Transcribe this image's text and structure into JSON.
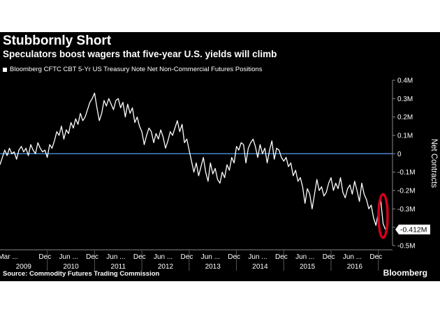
{
  "header": {
    "title": "Stubbornly Short",
    "subtitle": "Speculators boost wagers that five-year U.S. yields will climb"
  },
  "footer": {
    "source": "Source: Commodity Futures Trading Commission",
    "brand": "Bloomberg"
  },
  "colors": {
    "background": "#000000",
    "series_line": "#ffffff",
    "zero_line": "#4a90e2",
    "highlight": "#d0021b"
  },
  "chart_data": {
    "type": "line",
    "legend": "Bloomberg CFTC CBT 5-Yr US Treasury Note Net Non-Commercial Futures Positions",
    "ylabel": "Net Contracts",
    "ylim": [
      -0.5,
      0.4
    ],
    "xlim": [
      2009.0,
      2017.3
    ],
    "y_ticks": [
      {
        "value": 0.4,
        "label": "0.4M"
      },
      {
        "value": 0.3,
        "label": "0.3M"
      },
      {
        "value": 0.2,
        "label": "0.2M"
      },
      {
        "value": 0.1,
        "label": "0.1M"
      },
      {
        "value": 0,
        "label": "0"
      },
      {
        "value": -0.1,
        "label": "-0.1M"
      },
      {
        "value": -0.2,
        "label": "-0.2M"
      },
      {
        "value": -0.3,
        "label": "-0.3M"
      },
      {
        "value": -0.4,
        "label": "-0.4M"
      },
      {
        "value": -0.5,
        "label": "-0.5M"
      }
    ],
    "x_month_labels": [
      {
        "x": 2009.17,
        "label": "Mar ..."
      },
      {
        "x": 2009.95,
        "label": "Dec"
      },
      {
        "x": 2010.45,
        "label": "Jun ..."
      },
      {
        "x": 2010.95,
        "label": "Dec"
      },
      {
        "x": 2011.45,
        "label": "Jun ..."
      },
      {
        "x": 2011.95,
        "label": "Dec"
      },
      {
        "x": 2012.45,
        "label": "Jun ..."
      },
      {
        "x": 2012.95,
        "label": "Dec"
      },
      {
        "x": 2013.45,
        "label": "Jun ..."
      },
      {
        "x": 2013.95,
        "label": "Dec"
      },
      {
        "x": 2014.45,
        "label": "Jun ..."
      },
      {
        "x": 2014.95,
        "label": "Dec"
      },
      {
        "x": 2015.45,
        "label": "Jun ..."
      },
      {
        "x": 2015.95,
        "label": "Dec"
      },
      {
        "x": 2016.45,
        "label": "Jun ..."
      },
      {
        "x": 2016.95,
        "label": "Dec"
      }
    ],
    "x_year_labels": [
      {
        "x": 2009.5,
        "label": "2009"
      },
      {
        "x": 2010.5,
        "label": "2010"
      },
      {
        "x": 2011.5,
        "label": "2011"
      },
      {
        "x": 2012.5,
        "label": "2012"
      },
      {
        "x": 2013.5,
        "label": "2013"
      },
      {
        "x": 2014.5,
        "label": "2014"
      },
      {
        "x": 2015.5,
        "label": "2015"
      },
      {
        "x": 2016.5,
        "label": "2016"
      }
    ],
    "reference_line": 0,
    "last_value": {
      "value": -0.412,
      "label": "-0.412M"
    },
    "annotation": "red ellipse highlighting latest reading",
    "series": [
      {
        "x": [
          2009.0,
          2009.05,
          2009.1,
          2009.15,
          2009.2,
          2009.25,
          2009.3,
          2009.35,
          2009.4,
          2009.45,
          2009.5,
          2009.55,
          2009.6,
          2009.65,
          2009.7,
          2009.75,
          2009.8,
          2009.85,
          2009.9,
          2009.95,
          2010.0,
          2010.05,
          2010.1,
          2010.15,
          2010.2,
          2010.25,
          2010.3,
          2010.35,
          2010.4,
          2010.45,
          2010.5,
          2010.55,
          2010.6,
          2010.65,
          2010.7,
          2010.75,
          2010.8,
          2010.85,
          2010.9,
          2010.95,
          2011.0,
          2011.05,
          2011.1,
          2011.15,
          2011.2,
          2011.25,
          2011.3,
          2011.35,
          2011.4,
          2011.45,
          2011.5,
          2011.55,
          2011.6,
          2011.65,
          2011.7,
          2011.75,
          2011.8,
          2011.85,
          2011.9,
          2011.95,
          2012.0,
          2012.05,
          2012.1,
          2012.15,
          2012.2,
          2012.25,
          2012.3,
          2012.35,
          2012.4,
          2012.45,
          2012.5,
          2012.55,
          2012.6,
          2012.65,
          2012.7,
          2012.75,
          2012.8,
          2012.85,
          2012.9,
          2012.95,
          2013.0,
          2013.05,
          2013.1,
          2013.15,
          2013.2,
          2013.25,
          2013.3,
          2013.35,
          2013.4,
          2013.45,
          2013.5,
          2013.55,
          2013.6,
          2013.65,
          2013.7,
          2013.75,
          2013.8,
          2013.85,
          2013.9,
          2013.95,
          2014.0,
          2014.05,
          2014.1,
          2014.15,
          2014.2,
          2014.25,
          2014.3,
          2014.35,
          2014.4,
          2014.45,
          2014.5,
          2014.55,
          2014.6,
          2014.65,
          2014.7,
          2014.75,
          2014.8,
          2014.85,
          2014.9,
          2014.95,
          2015.0,
          2015.05,
          2015.1,
          2015.15,
          2015.2,
          2015.25,
          2015.3,
          2015.35,
          2015.4,
          2015.45,
          2015.5,
          2015.55,
          2015.6,
          2015.65,
          2015.7,
          2015.75,
          2015.8,
          2015.85,
          2015.9,
          2015.95,
          2016.0,
          2016.05,
          2016.1,
          2016.15,
          2016.2,
          2016.25,
          2016.3,
          2016.35,
          2016.4,
          2016.45,
          2016.5,
          2016.55,
          2016.6,
          2016.65,
          2016.7,
          2016.75,
          2016.8,
          2016.85,
          2016.9,
          2016.95,
          2017.0,
          2017.05,
          2017.1,
          2017.15
        ],
        "values": [
          -0.06,
          -0.02,
          0.02,
          -0.01,
          0.03,
          0.0,
          0.01,
          -0.03,
          0.02,
          0.04,
          0.01,
          0.03,
          -0.01,
          0.05,
          0.02,
          0.0,
          0.06,
          0.03,
          0.01,
          0.02,
          -0.02,
          0.05,
          0.03,
          0.07,
          0.12,
          0.1,
          0.15,
          0.08,
          0.13,
          0.11,
          0.17,
          0.14,
          0.19,
          0.16,
          0.22,
          0.18,
          0.2,
          0.24,
          0.28,
          0.3,
          0.33,
          0.25,
          0.18,
          0.22,
          0.29,
          0.26,
          0.3,
          0.27,
          0.24,
          0.29,
          0.3,
          0.25,
          0.28,
          0.2,
          0.27,
          0.22,
          0.25,
          0.17,
          0.2,
          0.15,
          0.12,
          0.05,
          0.1,
          0.14,
          0.12,
          0.06,
          0.11,
          0.08,
          0.13,
          0.09,
          0.03,
          0.07,
          0.12,
          0.1,
          0.14,
          0.18,
          0.12,
          0.16,
          0.06,
          0.08,
          0.02,
          -0.04,
          -0.1,
          -0.05,
          -0.12,
          -0.07,
          -0.02,
          -0.1,
          -0.15,
          -0.05,
          -0.11,
          -0.08,
          -0.14,
          -0.16,
          -0.1,
          -0.13,
          -0.06,
          -0.09,
          -0.02,
          -0.05,
          0.04,
          0.02,
          0.06,
          0.05,
          -0.05,
          0.03,
          0.06,
          0.08,
          0.04,
          -0.02,
          0.05,
          0.0,
          0.03,
          -0.05,
          0.02,
          0.07,
          -0.03,
          0.03,
          0.02,
          -0.02,
          -0.04,
          -0.02,
          -0.07,
          -0.05,
          -0.12,
          -0.09,
          -0.15,
          -0.13,
          -0.18,
          -0.27,
          -0.19,
          -0.22,
          -0.3,
          -0.22,
          -0.14,
          -0.2,
          -0.18,
          -0.23,
          -0.21,
          -0.16,
          -0.13,
          -0.2,
          -0.16,
          -0.19,
          -0.13,
          -0.21,
          -0.24,
          -0.19,
          -0.17,
          -0.22,
          -0.15,
          -0.2,
          -0.26,
          -0.16,
          -0.22,
          -0.25,
          -0.3,
          -0.28,
          -0.35,
          -0.39,
          -0.32,
          -0.25,
          -0.38,
          -0.412
        ]
      }
    ]
  }
}
